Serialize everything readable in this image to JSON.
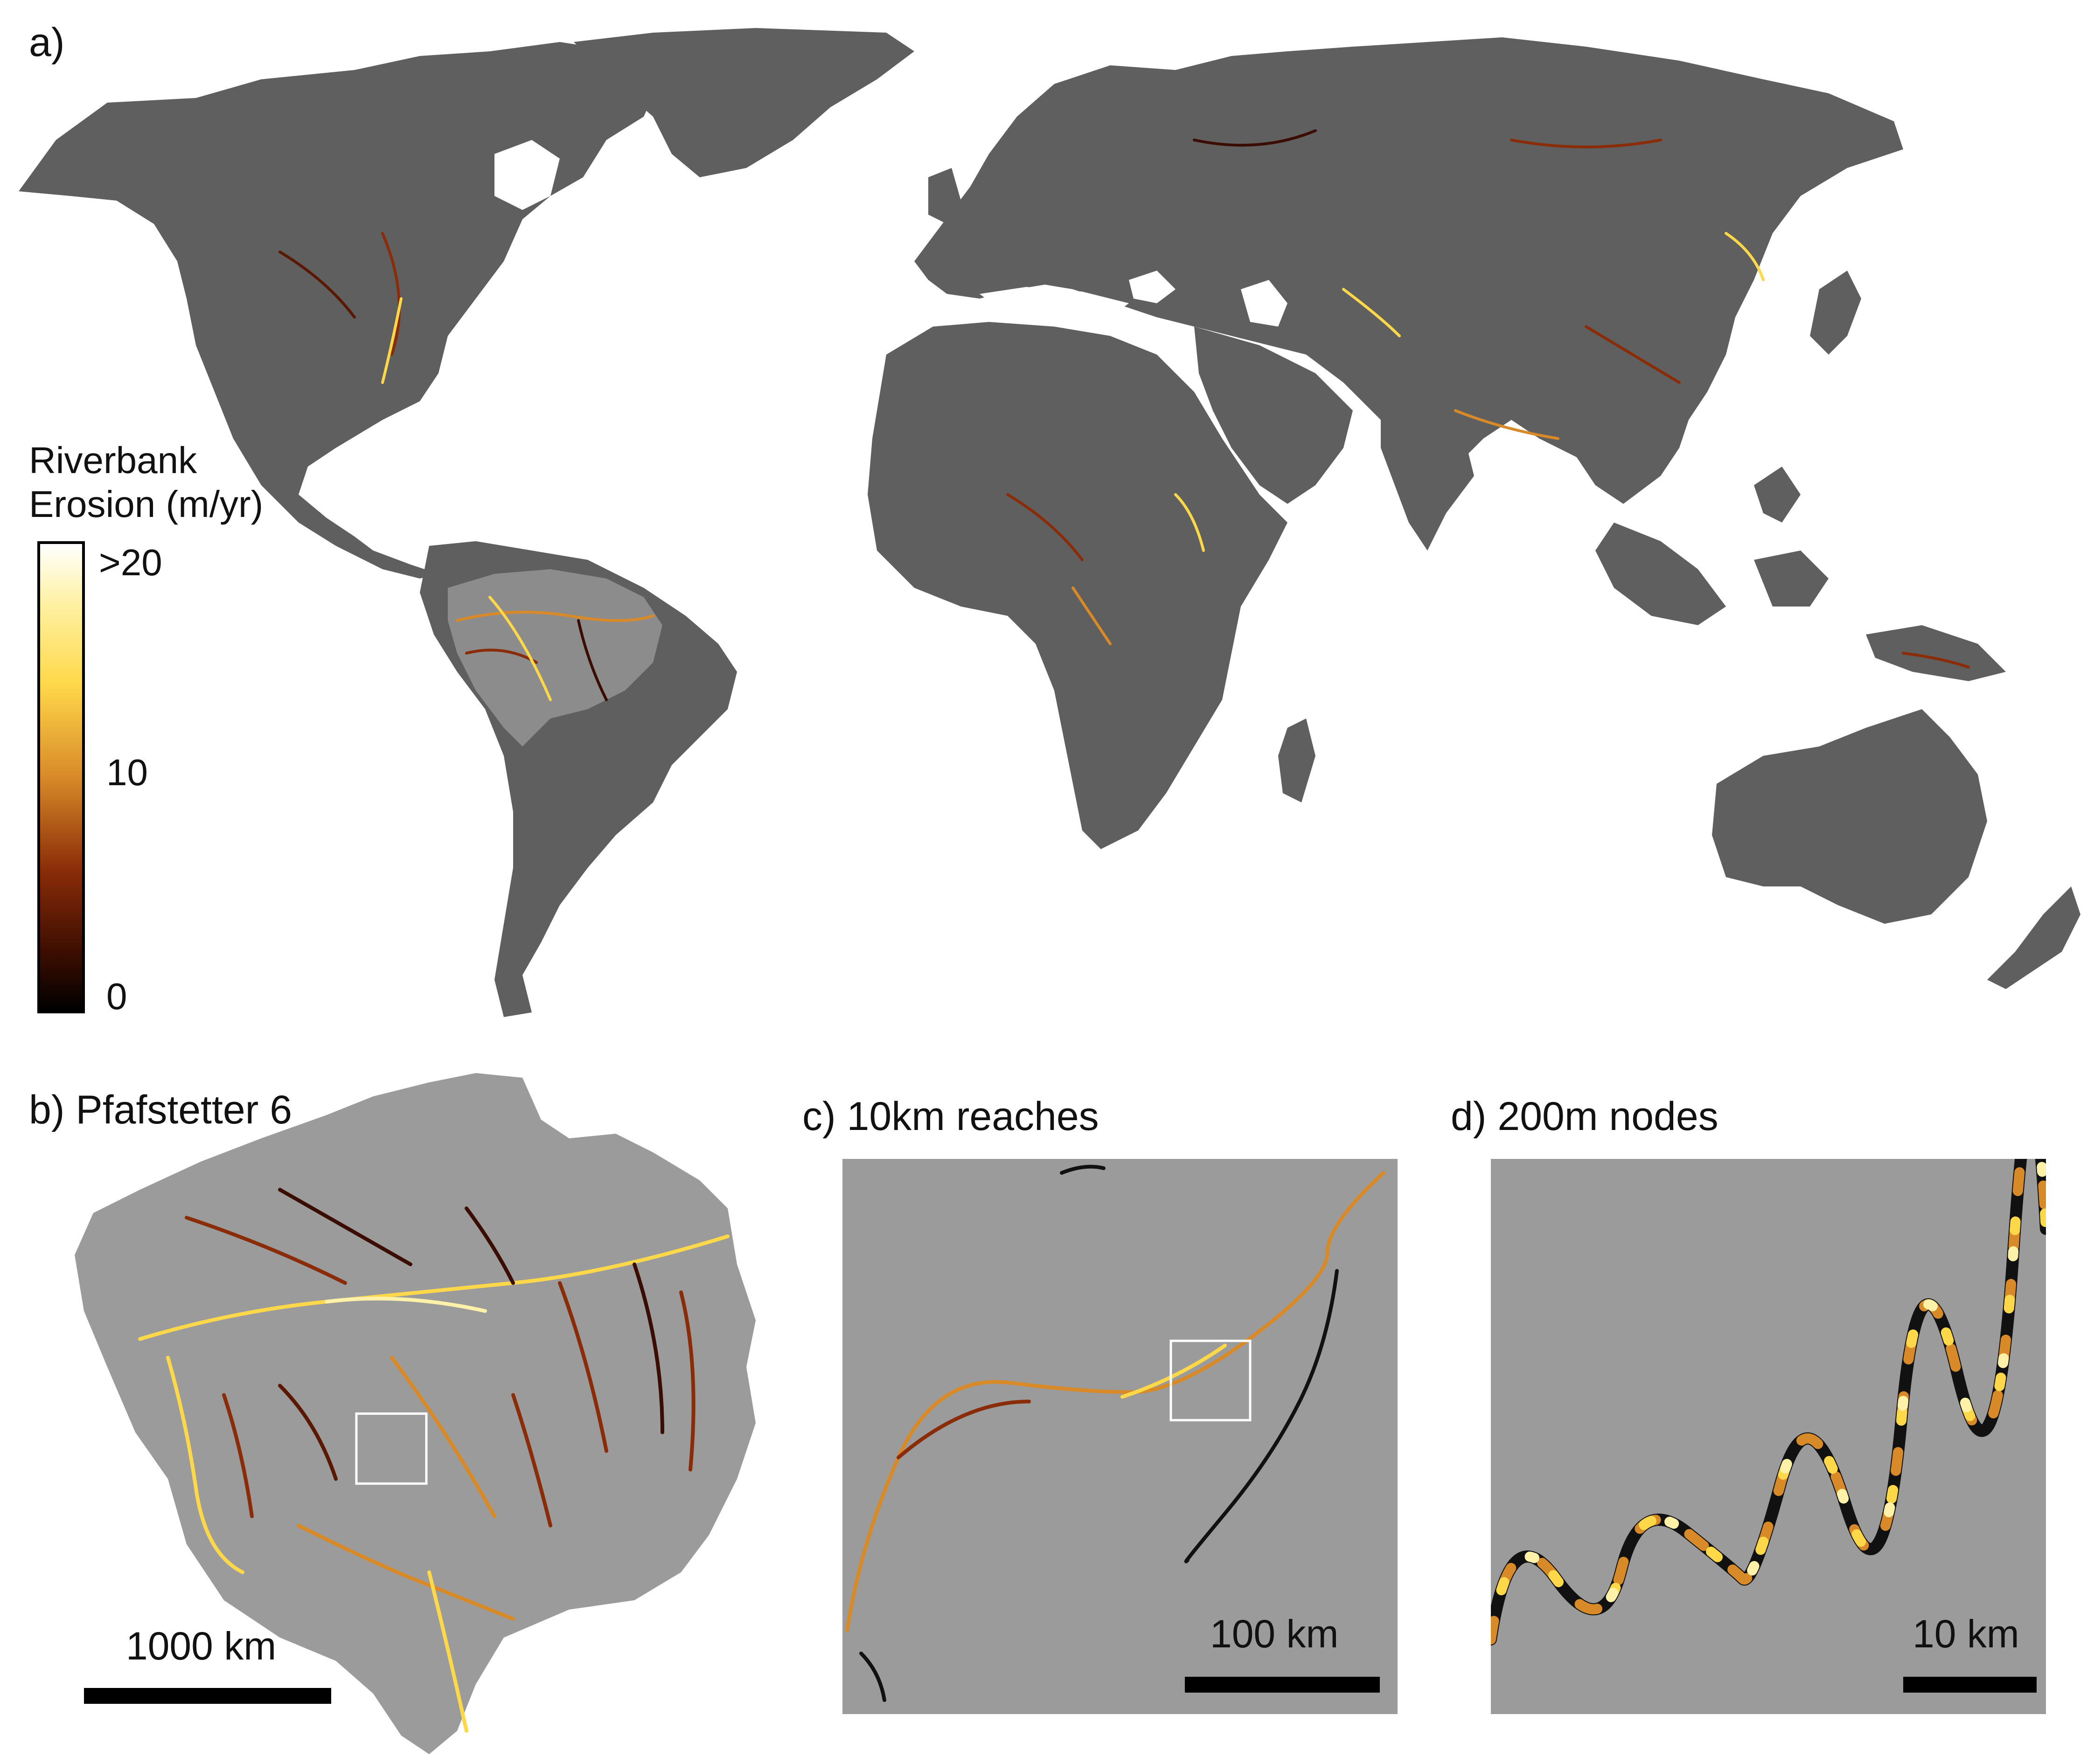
{
  "panel_a": {
    "label": "a)",
    "legend": {
      "title": "Riverbank\nErosion (m/yr)",
      "ticks": {
        "max": ">20",
        "mid": "10",
        "min": "0"
      },
      "colors": [
        "#ffffff",
        "#ffd84a",
        "#d88a28",
        "#8a2c08",
        "#000000"
      ]
    },
    "land_color": "#5f5f5f"
  },
  "panel_b": {
    "label": "b) Pfafstetter 6",
    "scale_label": "1000 km",
    "basin_color": "#9b9b9b"
  },
  "panel_c": {
    "label": "c) 10km reaches",
    "scale_label": "100 km"
  },
  "panel_d": {
    "label": "d) 200m nodes",
    "scale_label": "10 km"
  }
}
